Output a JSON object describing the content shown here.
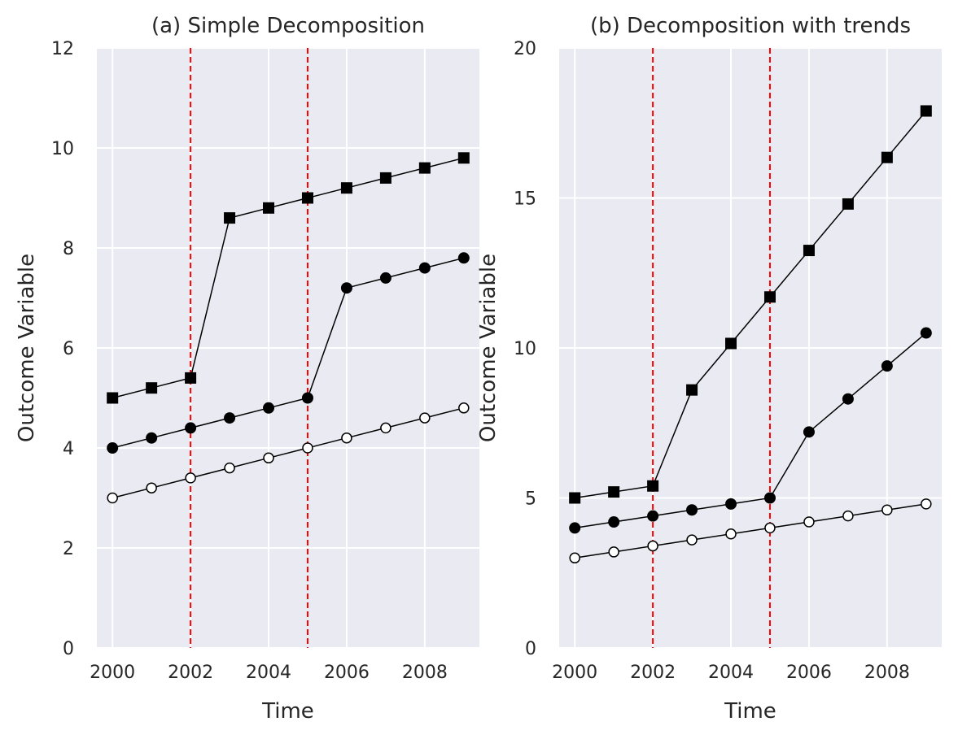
{
  "chart_data": [
    {
      "type": "line",
      "title": "(a) Simple Decomposition",
      "xlabel": "Time",
      "ylabel": "Outcome Variable",
      "xlim": [
        1999.6,
        2009.4
      ],
      "ylim": [
        0,
        12
      ],
      "xticks": [
        2000,
        2002,
        2004,
        2006,
        2008
      ],
      "yticks": [
        0,
        2,
        4,
        6,
        8,
        10,
        12
      ],
      "grid": true,
      "background": "#eaeaf2",
      "x": [
        2000,
        2001,
        2002,
        2003,
        2004,
        2005,
        2006,
        2007,
        2008,
        2009
      ],
      "vlines": [
        2002,
        2005
      ],
      "vline_color": "#ff0000",
      "series": [
        {
          "marker": "square",
          "color": "#000000",
          "values": [
            5.0,
            5.2,
            5.4,
            8.6,
            8.8,
            9.0,
            9.2,
            9.4,
            9.6,
            9.8
          ]
        },
        {
          "marker": "circle",
          "color": "#000000",
          "values": [
            4.0,
            4.2,
            4.4,
            4.6,
            4.8,
            5.0,
            7.2,
            7.4,
            7.6,
            7.8
          ]
        },
        {
          "marker": "open-circle",
          "color": "#000000",
          "values": [
            3.0,
            3.2,
            3.4,
            3.6,
            3.8,
            4.0,
            4.2,
            4.4,
            4.6,
            4.8
          ]
        }
      ]
    },
    {
      "type": "line",
      "title": "(b) Decomposition with trends",
      "xlabel": "Time",
      "ylabel": "Outcome Variable",
      "xlim": [
        1999.6,
        2009.4
      ],
      "ylim": [
        0,
        20
      ],
      "xticks": [
        2000,
        2002,
        2004,
        2006,
        2008
      ],
      "yticks": [
        0,
        5,
        10,
        15,
        20
      ],
      "grid": true,
      "background": "#eaeaf2",
      "x": [
        2000,
        2001,
        2002,
        2003,
        2004,
        2005,
        2006,
        2007,
        2008,
        2009
      ],
      "vlines": [
        2002,
        2005
      ],
      "vline_color": "#ff0000",
      "series": [
        {
          "marker": "square",
          "color": "#000000",
          "values": [
            5.0,
            5.2,
            5.4,
            8.6,
            10.15,
            11.7,
            13.25,
            14.8,
            16.35,
            17.9
          ]
        },
        {
          "marker": "circle",
          "color": "#000000",
          "values": [
            4.0,
            4.2,
            4.4,
            4.6,
            4.8,
            5.0,
            7.2,
            8.3,
            9.4,
            10.5
          ]
        },
        {
          "marker": "open-circle",
          "color": "#000000",
          "values": [
            3.0,
            3.2,
            3.4,
            3.6,
            3.8,
            4.0,
            4.2,
            4.4,
            4.6,
            4.8
          ]
        }
      ]
    }
  ]
}
